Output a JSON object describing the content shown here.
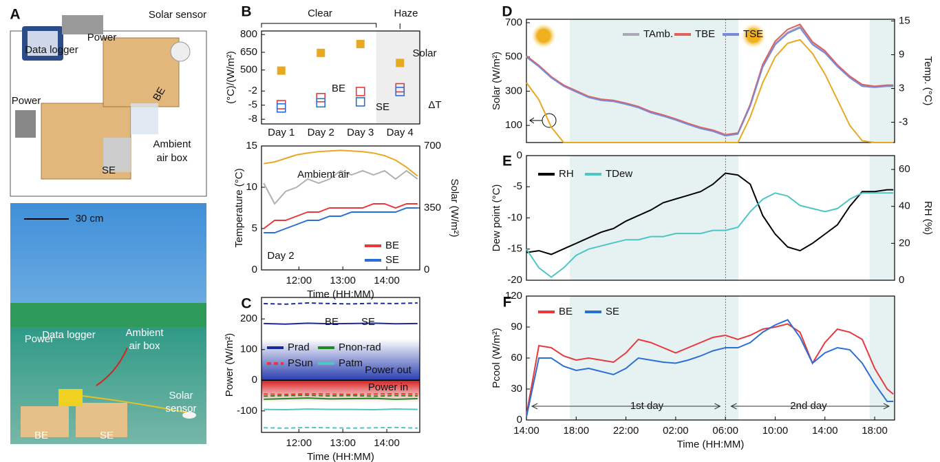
{
  "panel_letters": [
    "A",
    "B",
    "C",
    "D",
    "E",
    "F"
  ],
  "panel_a": {
    "top_labels": [
      "Solar sensor",
      "Power",
      "Data logger",
      "BE",
      "Power",
      "Ambient",
      "air box",
      "SE"
    ],
    "bottom_labels": [
      "30 cm",
      "Data logger",
      "Power",
      "Ambient",
      "air box",
      "Solar",
      "sensor",
      "BE",
      "SE"
    ]
  },
  "chart_data": [
    {
      "type": "scatter",
      "categories": [
        "Day 1",
        "Day 2",
        "Day 3",
        "Day 4"
      ],
      "series": [
        {
          "name": "Solar",
          "color": "#e8a820",
          "marker": "filled",
          "values": [
            495,
            645,
            720,
            560
          ]
        },
        {
          "name": "BE",
          "color": "#e8383d",
          "marker": "hollow",
          "axis": "y2",
          "values": [
            -4.9,
            -3.4,
            -2.1,
            -1.3
          ]
        },
        {
          "name": "SE",
          "color": "#2a6fd6",
          "marker": "hollow",
          "axis": "y2",
          "values": [
            -5.6,
            -4.5,
            -4.3,
            -2.1
          ]
        }
      ],
      "ylim": [
        440,
        830
      ],
      "yticks": [
        500,
        650,
        800
      ],
      "y2lim": [
        -9,
        -0.5
      ],
      "y2ticks": [
        -8,
        -5,
        -2
      ],
      "ylabel": "(°C)/(W/m²)",
      "annotations": [
        "Clear",
        "Haze",
        "ΔT"
      ]
    },
    {
      "type": "line",
      "x": [
        11.2,
        11.45,
        11.7,
        11.95,
        12.2,
        12.45,
        12.7,
        12.95,
        13.2,
        13.45,
        13.7,
        13.95,
        14.2,
        14.45,
        14.7
      ],
      "xlim": [
        11.15,
        14.75
      ],
      "xticks": [
        {
          "value": 12,
          "label": "12:00"
        },
        {
          "value": 13,
          "label": "13:00"
        },
        {
          "value": 14,
          "label": "14:00"
        }
      ],
      "ylim": [
        0,
        15
      ],
      "yticks": [
        0,
        5,
        10,
        15
      ],
      "y2lim": [
        0,
        700
      ],
      "y2ticks": [
        0,
        350,
        700
      ],
      "xlabel": "Time (HH:MM)",
      "ylabel": "Temperature (°C)",
      "y2label": "Solar (W/m²)",
      "series": [
        {
          "name": "Ambient air",
          "color": "#b0b0b0",
          "values": [
            10.5,
            8,
            9.5,
            10,
            11,
            10.5,
            11,
            12,
            11.5,
            12,
            11.5,
            12,
            11,
            12,
            11
          ]
        },
        {
          "name": "BE",
          "color": "#e8383d",
          "values": [
            5,
            6,
            6,
            6.5,
            7,
            7,
            7.5,
            7.5,
            7.5,
            7.5,
            8,
            8,
            7.5,
            8,
            8
          ]
        },
        {
          "name": "SE",
          "color": "#2a6fd6",
          "values": [
            4.5,
            4.5,
            5,
            5.5,
            6,
            6,
            6.5,
            6.5,
            7,
            7,
            7,
            7,
            7,
            7.5,
            7.5
          ]
        },
        {
          "color": "#e8a820",
          "axis": "y2",
          "values": [
            600,
            610,
            630,
            650,
            660,
            668,
            672,
            675,
            672,
            668,
            660,
            645,
            620,
            580,
            530
          ]
        }
      ],
      "annotations": [
        "Day 2"
      ]
    },
    {
      "type": "line",
      "x": [
        11.2,
        11.7,
        12.2,
        12.7,
        13.2,
        13.7,
        14.2,
        14.7
      ],
      "xlim": [
        11.15,
        14.75
      ],
      "xticks": [
        {
          "value": 12,
          "label": "12:00"
        },
        {
          "value": 13,
          "label": "13:00"
        },
        {
          "value": 14,
          "label": "14:00"
        }
      ],
      "ylim": [
        -170,
        270
      ],
      "yticks": [
        -100,
        0,
        100,
        200
      ],
      "xlabel": "Time (HH:MM)",
      "ylabel": "Power (W/m²)",
      "series": [
        {
          "name": "Prad",
          "color": "#1a2a9c",
          "values": [
            185,
            183,
            186,
            184,
            185,
            186,
            184,
            185
          ]
        },
        {
          "color": "#1a2a9c",
          "dash": true,
          "values": [
            250,
            248,
            252,
            250,
            249,
            251,
            250,
            252
          ]
        },
        {
          "name": "Pnon-rad",
          "color": "#1f8a1f",
          "values": [
            -62,
            -60,
            -58,
            -61,
            -60,
            -59,
            -62,
            -60
          ]
        },
        {
          "color": "#1f8a1f",
          "dash": true,
          "values": [
            -52,
            -50,
            -49,
            -51,
            -50,
            -52,
            -50,
            -51
          ]
        },
        {
          "name": "PSun",
          "color": "#e8383d",
          "dash": true,
          "values": [
            -45,
            -46,
            -44,
            -45,
            -46,
            -45,
            -44,
            -45
          ]
        },
        {
          "name": "Patm",
          "color": "#4fc4c4",
          "values": [
            -95,
            -96,
            -94,
            -95,
            -95,
            -96,
            -94,
            -95
          ]
        },
        {
          "color": "#4fc4c4",
          "dash": true,
          "values": [
            -155,
            -156,
            -154,
            -155,
            -156,
            -155,
            -154,
            -156
          ]
        }
      ],
      "annotations": [
        "BE",
        "SE",
        "Power out",
        "Power in"
      ]
    },
    {
      "type": "line",
      "x": [
        14,
        15,
        16,
        17,
        18,
        19,
        20,
        21,
        22,
        23,
        24,
        25,
        26,
        27,
        28,
        29,
        30,
        31,
        32,
        33,
        34,
        35,
        36,
        37,
        38,
        39,
        40,
        41,
        42,
        43,
        43.5
      ],
      "xlim": [
        14,
        43.6
      ],
      "ylim": [
        0,
        720
      ],
      "yticks": [
        100,
        300,
        500,
        700
      ],
      "y2lim": [
        -6.6,
        15.3
      ],
      "y2ticks": [
        -3,
        3,
        9,
        15
      ],
      "ylabel": "Solar (W/m²)",
      "y2label": "Temp. (°C)",
      "series": [
        {
          "color": "#e8a820",
          "values": [
            350,
            250,
            90,
            0,
            0,
            0,
            0,
            0,
            0,
            0,
            0,
            0,
            0,
            0,
            0,
            0,
            0,
            0,
            150,
            350,
            500,
            580,
            600,
            520,
            400,
            250,
            100,
            10,
            0,
            0,
            0
          ]
        },
        {
          "name": "TAmb.",
          "color": "#a8a8b8",
          "axis": "y2",
          "values": [
            8.7,
            7,
            5,
            3.5,
            2.5,
            1.5,
            1,
            0.8,
            0.3,
            -0.3,
            -1.2,
            -1.8,
            -2.5,
            -3.3,
            -4,
            -4.5,
            -5.3,
            -5,
            0,
            7,
            11,
            13,
            14,
            11,
            9.5,
            7,
            5,
            3.5,
            3.3,
            3.5,
            3.5
          ]
        },
        {
          "name": "TBE",
          "color": "#e06060",
          "axis": "y2",
          "values": [
            8.8,
            7.1,
            5.1,
            3.6,
            2.6,
            1.6,
            1.1,
            0.9,
            0.4,
            -0.2,
            -1.1,
            -1.7,
            -2.4,
            -3.2,
            -3.9,
            -4.4,
            -5.2,
            -4.9,
            0.2,
            7.3,
            11.4,
            13.5,
            14.4,
            11.3,
            9.7,
            7.2,
            5.2,
            3.7,
            3.4,
            3.6,
            3.6
          ]
        },
        {
          "name": "TSE",
          "color": "#7a8ad8",
          "axis": "y2",
          "values": [
            8.6,
            6.9,
            4.9,
            3.4,
            2.4,
            1.4,
            0.9,
            0.7,
            0.2,
            -0.4,
            -1.3,
            -1.9,
            -2.6,
            -3.4,
            -4.1,
            -4.6,
            -5.4,
            -5.1,
            -0.1,
            6.8,
            10.8,
            12.8,
            13.8,
            10.8,
            9.3,
            6.9,
            4.9,
            3.4,
            3.2,
            3.4,
            3.4
          ]
        }
      ]
    },
    {
      "type": "line",
      "x": [
        14,
        15,
        16,
        17,
        18,
        19,
        20,
        21,
        22,
        23,
        24,
        25,
        26,
        27,
        28,
        29,
        30,
        31,
        32,
        33,
        34,
        35,
        36,
        37,
        38,
        39,
        40,
        41,
        42,
        43,
        43.5
      ],
      "xlim": [
        14,
        43.6
      ],
      "ylim": [
        -20,
        0
      ],
      "yticks": [
        -20,
        -15,
        -10,
        -5,
        0
      ],
      "y2lim": [
        0,
        67.5
      ],
      "y2ticks": [
        0,
        20,
        40,
        60
      ],
      "ylabel": "Dew point (°C)",
      "y2label": "RH (%)",
      "series": [
        {
          "name": "RH",
          "color": "#000000",
          "axis": "y2",
          "values": [
            15,
            16,
            14,
            17,
            20,
            23,
            26,
            28,
            32,
            35,
            38,
            42,
            44,
            46,
            48,
            52,
            58,
            57,
            52,
            35,
            25,
            18,
            16,
            20,
            25,
            30,
            40,
            48,
            48,
            49,
            49
          ]
        },
        {
          "name": "TDew",
          "color": "#4fc4c4",
          "values": [
            -15,
            -18,
            -19.5,
            -18,
            -16,
            -15,
            -14.5,
            -14,
            -13.5,
            -13.5,
            -13,
            -13,
            -12.5,
            -12.5,
            -12.5,
            -12,
            -12,
            -11.5,
            -9,
            -7,
            -6,
            -6.5,
            -8,
            -8.5,
            -9,
            -8.5,
            -7,
            -6,
            -6,
            -6,
            -6
          ]
        }
      ]
    },
    {
      "type": "line",
      "x": [
        14,
        15,
        16,
        17,
        18,
        19,
        20,
        21,
        22,
        23,
        24,
        25,
        26,
        27,
        28,
        29,
        30,
        31,
        32,
        33,
        34,
        35,
        36,
        37,
        38,
        39,
        40,
        41,
        42,
        43,
        43.5
      ],
      "xlim": [
        14,
        43.6
      ],
      "ylim": [
        0,
        120
      ],
      "yticks": [
        0,
        30,
        60,
        90,
        120
      ],
      "xticks": [
        {
          "value": 14,
          "label": "14:00"
        },
        {
          "value": 18,
          "label": "18:00"
        },
        {
          "value": 22,
          "label": "22:00"
        },
        {
          "value": 26,
          "label": "02:00"
        },
        {
          "value": 30,
          "label": "06:00"
        },
        {
          "value": 34,
          "label": "10:00"
        },
        {
          "value": 38,
          "label": "14:00"
        },
        {
          "value": 42,
          "label": "18:00"
        }
      ],
      "xlabel": "Time (HH:MM)",
      "ylabel": "Pcool (W/m²)",
      "series": [
        {
          "name": "BE",
          "color": "#e8383d",
          "values": [
            5,
            72,
            70,
            62,
            58,
            60,
            58,
            56,
            65,
            78,
            75,
            70,
            65,
            70,
            75,
            80,
            82,
            78,
            82,
            88,
            90,
            93,
            85,
            55,
            75,
            88,
            85,
            78,
            50,
            30,
            25
          ]
        },
        {
          "name": "SE",
          "color": "#2a6fd6",
          "values": [
            3,
            60,
            60,
            52,
            48,
            50,
            47,
            44,
            50,
            60,
            58,
            56,
            55,
            58,
            62,
            67,
            70,
            70,
            75,
            85,
            92,
            97,
            80,
            55,
            65,
            70,
            68,
            55,
            35,
            18,
            18
          ]
        }
      ],
      "annotations": [
        "1st day",
        "2nd day"
      ]
    }
  ]
}
